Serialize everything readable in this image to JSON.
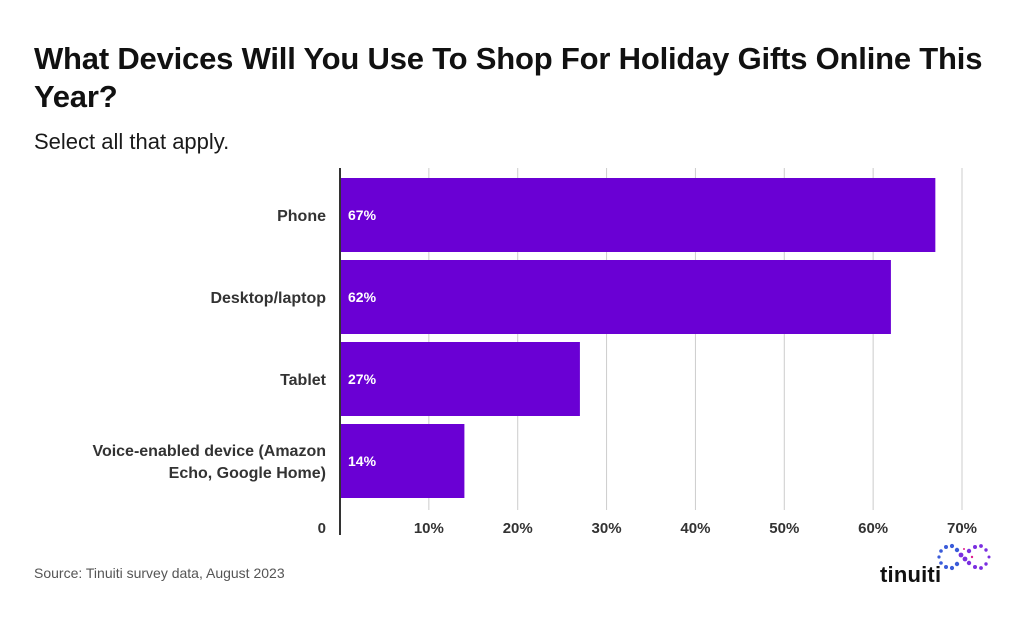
{
  "title": "What Devices Will You Use To Shop For Holiday Gifts Online This Year?",
  "subtitle": "Select all that apply.",
  "source": "Source: Tinuiti survey data, August 2023",
  "brand": {
    "name": "tinuiti",
    "logo_icon": "tinuiti-infinity-logo"
  },
  "colors": {
    "bar": "#6a00d4",
    "bar_label": "#ffffff",
    "grid": "#cccccc",
    "axis": "#333333",
    "text": "#333333",
    "logo_purple": "#7a2ee0",
    "logo_blue": "#3a5bd9"
  },
  "chart_data": {
    "type": "bar",
    "orientation": "horizontal",
    "title": "What Devices Will You Use To Shop For Holiday Gifts Online This Year?",
    "subtitle": "Select all that apply.",
    "categories": [
      "Phone",
      "Desktop/laptop",
      "Tablet",
      "Voice-enabled device (Amazon Echo, Google Home)"
    ],
    "category_lines": [
      [
        "Phone"
      ],
      [
        "Desktop/laptop"
      ],
      [
        "Tablet"
      ],
      [
        "Voice-enabled device (Amazon",
        "Echo, Google Home)"
      ]
    ],
    "values": [
      67,
      62,
      27,
      14
    ],
    "value_labels": [
      "67%",
      "62%",
      "27%",
      "14%"
    ],
    "xlim": [
      0,
      70
    ],
    "xticks": [
      0,
      10,
      20,
      30,
      40,
      50,
      60,
      70
    ],
    "xtick_labels": [
      "0",
      "10%",
      "20%",
      "30%",
      "40%",
      "50%",
      "60%",
      "70%"
    ],
    "grid": true,
    "legend": "none"
  }
}
